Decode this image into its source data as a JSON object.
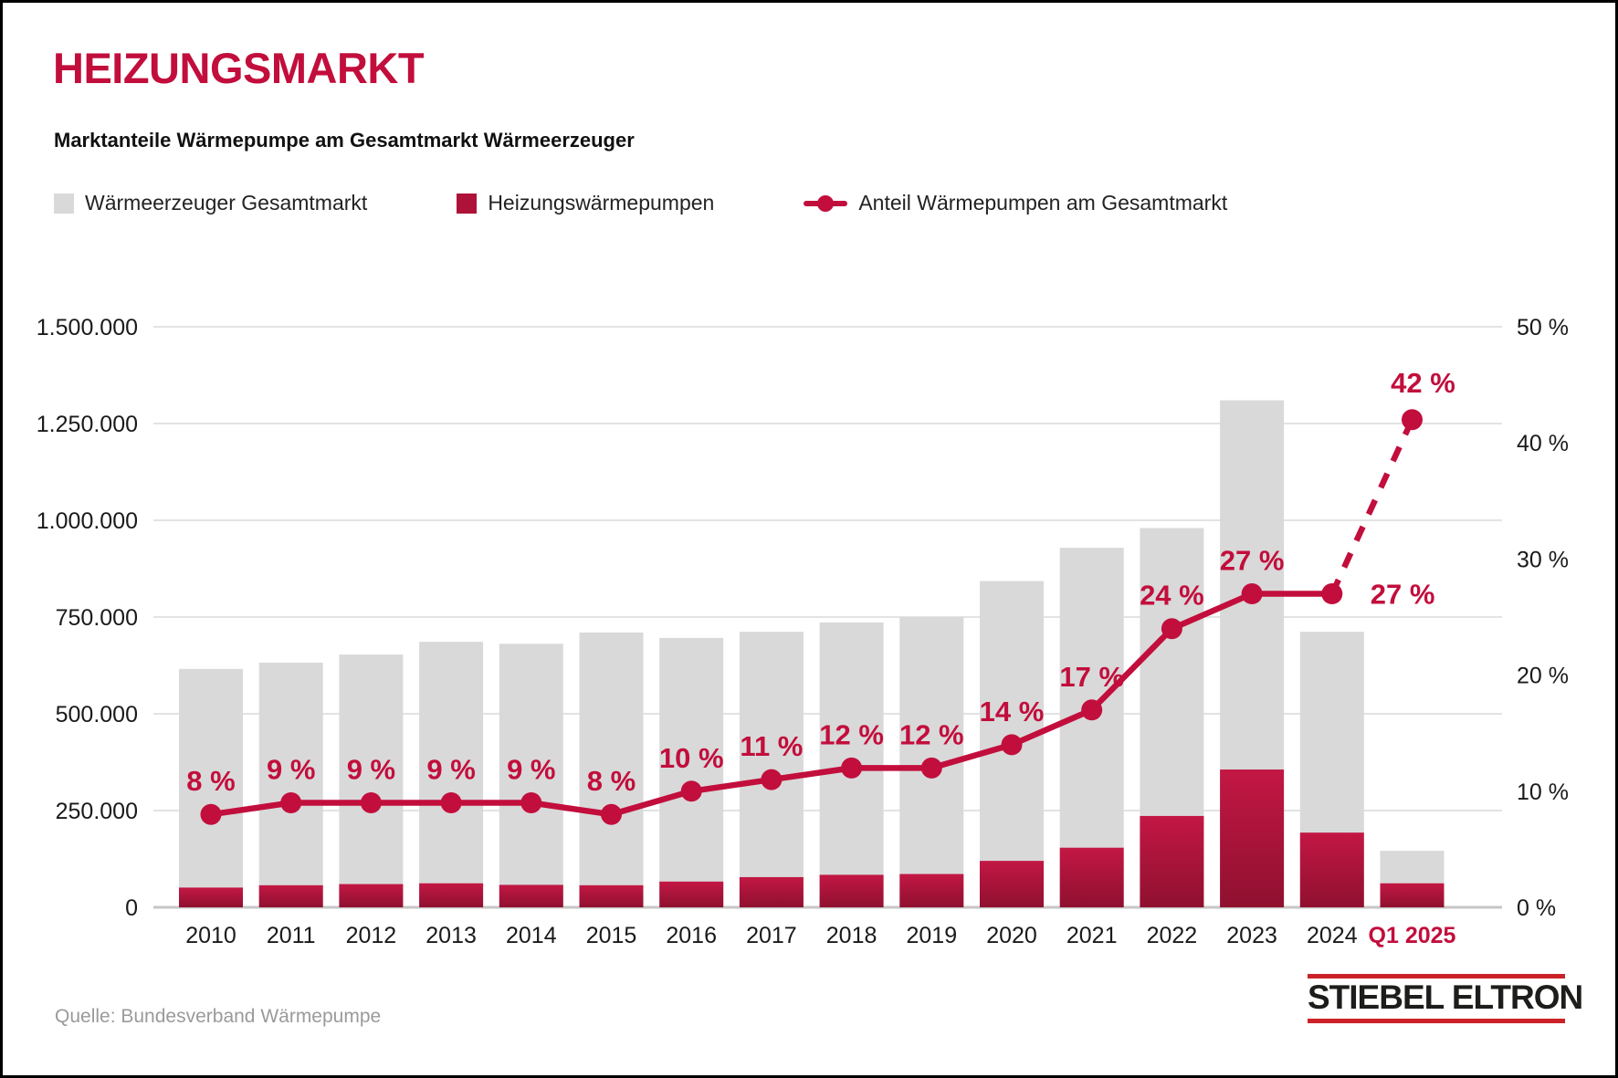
{
  "page": {
    "title": "HEIZUNGSMARKT",
    "subtitle": "Marktanteile Wärmepumpe am Gesamtmarkt Wärmeerzeuger",
    "source": "Quelle: Bundesverband Wärmepumpe",
    "logo_text": "STIEBEL ELTRON"
  },
  "legend": {
    "items": [
      {
        "label": "Wärmeerzeuger Gesamtmarkt",
        "marker": "square",
        "color": "#D9D9D9"
      },
      {
        "label": "Heizungswärmepumpen",
        "marker": "square",
        "color": "#AE1238"
      },
      {
        "label": "Anteil Wärmepumpen am Gesamtmarkt",
        "marker": "line-dot",
        "color": "#C20E3C"
      }
    ]
  },
  "colors": {
    "accent": "#C20E3C",
    "bar_total": "#D9D9D9",
    "bar_hp_top": "#C31744",
    "bar_hp_bottom": "#8F1030",
    "grid": "#E3E3E3",
    "baseline": "#C6C6C6",
    "axis_text": "#1A1A1A",
    "source_text": "#9A9A9A",
    "logo_red": "#CB2229"
  },
  "chart_data": {
    "type": "bar+line combo",
    "title": "Marktanteile Wärmepumpe am Gesamtmarkt Wärmeerzeuger",
    "categories": [
      "2010",
      "2011",
      "2012",
      "2013",
      "2014",
      "2015",
      "2016",
      "2017",
      "2018",
      "2019",
      "2020",
      "2021",
      "2022",
      "2023",
      "2024",
      "Q1 2025"
    ],
    "series": [
      {
        "name": "Wärmeerzeuger Gesamtmarkt",
        "type": "bar",
        "axis": "left",
        "values": [
          616000,
          632000,
          653000,
          686000,
          681000,
          710000,
          696000,
          712000,
          736000,
          750000,
          843000,
          929000,
          980000,
          1310000,
          712000,
          146000
        ]
      },
      {
        "name": "Heizungswärmepumpen",
        "type": "bar",
        "axis": "left",
        "values": [
          51000,
          57000,
          60000,
          62000,
          58000,
          57000,
          66500,
          78000,
          84000,
          86000,
          120000,
          154000,
          236000,
          356000,
          193000,
          62000
        ]
      },
      {
        "name": "Anteil Wärmepumpen am Gesamtmarkt",
        "type": "line",
        "axis": "right",
        "values": [
          8,
          9,
          9,
          9,
          9,
          8,
          10,
          11,
          12,
          12,
          14,
          17,
          24,
          27,
          27,
          42
        ],
        "labels": [
          "8 %",
          "9 %",
          "9 %",
          "9 %",
          "9 %",
          "8 %",
          "10 %",
          "11 %",
          "12 %",
          "12 %",
          "14 %",
          "17 %",
          "24 %",
          "27 %",
          "27 %",
          "42 %"
        ],
        "dashed_from_index": 14
      }
    ],
    "left_axis": {
      "min": 0,
      "max": 1500000,
      "step": 250000,
      "tick_labels": [
        "0",
        "250.000",
        "500.000",
        "750.000",
        "1.000.000",
        "1.250.000",
        "1.500.000"
      ]
    },
    "right_axis": {
      "min": 0,
      "max": 50,
      "step": 10,
      "tick_labels": [
        "0 %",
        "10 %",
        "20 %",
        "30 %",
        "40 %",
        "50 %"
      ]
    },
    "grid": "horizontal",
    "legend_position": "top",
    "highlight_category": "Q1 2025"
  }
}
